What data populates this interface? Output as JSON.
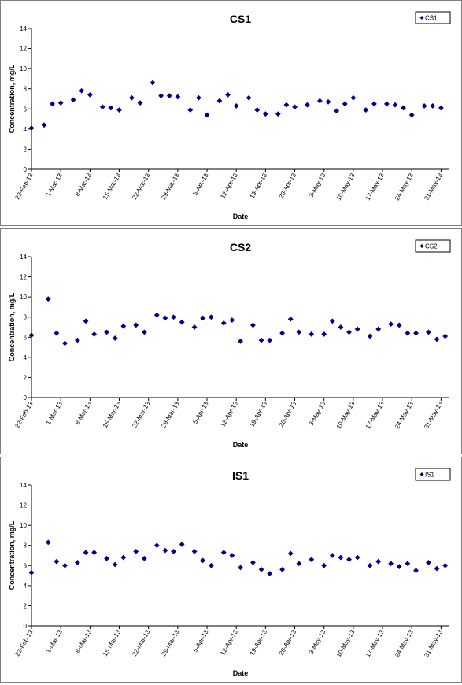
{
  "chart_data": [
    {
      "type": "scatter",
      "title": "CS1",
      "xlabel": "Date",
      "ylabel": "Concentration, mg/L",
      "ylim": [
        0,
        14
      ],
      "yticks": [
        "0",
        "2",
        "4",
        "6",
        "8",
        "10",
        "12",
        "14"
      ],
      "xlim": [
        "2013-02-22",
        "2013-06-02"
      ],
      "xtick_labels": [
        "22-Feb-13",
        "1-Mar-13",
        "8-Mar-13",
        "15-Mar-13",
        "22-Mar-13",
        "29-Mar-13",
        "5-Apr-13",
        "12-Apr-13",
        "19-Apr-13",
        "26-Apr-13",
        "3-May-13",
        "10-May-13",
        "17-May-13",
        "24-May-13",
        "31-May-13"
      ],
      "grid": false,
      "legend_position": "top-right",
      "marker_color": "#00008b",
      "series": [
        {
          "name": "CS1",
          "x": [
            "2013-02-22",
            "2013-02-25",
            "2013-02-27",
            "2013-03-01",
            "2013-03-04",
            "2013-03-06",
            "2013-03-08",
            "2013-03-11",
            "2013-03-13",
            "2013-03-15",
            "2013-03-18",
            "2013-03-20",
            "2013-03-23",
            "2013-03-25",
            "2013-03-27",
            "2013-03-29",
            "2013-04-01",
            "2013-04-03",
            "2013-04-05",
            "2013-04-08",
            "2013-04-10",
            "2013-04-12",
            "2013-04-15",
            "2013-04-17",
            "2013-04-19",
            "2013-04-22",
            "2013-04-24",
            "2013-04-26",
            "2013-04-29",
            "2013-05-02",
            "2013-05-04",
            "2013-05-06",
            "2013-05-08",
            "2013-05-10",
            "2013-05-13",
            "2013-05-15",
            "2013-05-18",
            "2013-05-20",
            "2013-05-22",
            "2013-05-24",
            "2013-05-27",
            "2013-05-29",
            "2013-05-31"
          ],
          "y": [
            4.1,
            4.4,
            6.5,
            6.6,
            6.9,
            7.8,
            7.4,
            6.2,
            6.1,
            5.9,
            7.1,
            6.6,
            8.6,
            7.3,
            7.3,
            7.2,
            5.9,
            7.1,
            5.4,
            6.8,
            7.4,
            6.3,
            7.1,
            5.9,
            5.5,
            5.5,
            6.4,
            6.2,
            6.4,
            6.8,
            6.7,
            5.8,
            6.5,
            7.1,
            5.9,
            6.5,
            6.5,
            6.4,
            6.1,
            5.4,
            6.3,
            6.3,
            6.1
          ]
        }
      ]
    },
    {
      "type": "scatter",
      "title": "CS2",
      "xlabel": "Date",
      "ylabel": "Concentration, mg/L",
      "ylim": [
        0,
        14
      ],
      "yticks": [
        "0",
        "2",
        "4",
        "6",
        "8",
        "10",
        "12",
        "14"
      ],
      "xlim": [
        "2013-02-22",
        "2013-06-02"
      ],
      "xtick_labels": [
        "22-Feb-13",
        "1-Mar-13",
        "8-Mar-13",
        "15-Mar-13",
        "22-Mar-13",
        "29-Mar-13",
        "5-Apr-13",
        "12-Apr-13",
        "19-Apr-13",
        "26-Apr-13",
        "3-May-13",
        "10-May-13",
        "17-May-13",
        "24-May-13",
        "31-May-13"
      ],
      "grid": false,
      "legend_position": "top-right",
      "marker_color": "#00008b",
      "series": [
        {
          "name": "CS2",
          "x": [
            "2013-02-22",
            "2013-02-26",
            "2013-02-28",
            "2013-03-02",
            "2013-03-05",
            "2013-03-07",
            "2013-03-09",
            "2013-03-12",
            "2013-03-14",
            "2013-03-16",
            "2013-03-19",
            "2013-03-21",
            "2013-03-24",
            "2013-03-26",
            "2013-03-28",
            "2013-03-30",
            "2013-04-02",
            "2013-04-04",
            "2013-04-06",
            "2013-04-09",
            "2013-04-11",
            "2013-04-13",
            "2013-04-16",
            "2013-04-18",
            "2013-04-20",
            "2013-04-23",
            "2013-04-25",
            "2013-04-27",
            "2013-04-30",
            "2013-05-03",
            "2013-05-05",
            "2013-05-07",
            "2013-05-09",
            "2013-05-11",
            "2013-05-14",
            "2013-05-16",
            "2013-05-19",
            "2013-05-21",
            "2013-05-23",
            "2013-05-25",
            "2013-05-28",
            "2013-05-30",
            "2013-06-01"
          ],
          "y": [
            6.2,
            9.8,
            6.4,
            5.4,
            5.7,
            7.6,
            6.3,
            6.5,
            5.9,
            7.1,
            7.2,
            6.5,
            8.2,
            7.9,
            8.0,
            7.5,
            7.0,
            7.9,
            8.0,
            7.4,
            7.7,
            5.6,
            7.2,
            5.7,
            5.7,
            6.4,
            7.8,
            6.5,
            6.3,
            6.3,
            7.6,
            7.0,
            6.5,
            6.8,
            6.1,
            6.8,
            7.3,
            7.2,
            6.4,
            6.4,
            6.5,
            5.8,
            6.1
          ]
        }
      ]
    },
    {
      "type": "scatter",
      "title": "IS1",
      "xlabel": "Date",
      "ylabel": "Concentration, mg/L",
      "ylim": [
        0,
        14
      ],
      "yticks": [
        "0",
        "2",
        "4",
        "6",
        "8",
        "10",
        "12",
        "14"
      ],
      "xlim": [
        "2013-02-22",
        "2013-06-02"
      ],
      "xtick_labels": [
        "22-Feb-13",
        "1-Mar-13",
        "8-Mar-13",
        "15-Mar-13",
        "22-Mar-13",
        "29-Mar-13",
        "5-Apr-13",
        "12-Apr-13",
        "19-Apr-13",
        "26-Apr-13",
        "3-May-13",
        "10-May-13",
        "17-May-13",
        "24-May-13",
        "31-May-13"
      ],
      "grid": false,
      "legend_position": "top-right",
      "marker_color": "#00008b",
      "series": [
        {
          "name": "IS1",
          "x": [
            "2013-02-22",
            "2013-02-26",
            "2013-02-28",
            "2013-03-02",
            "2013-03-05",
            "2013-03-07",
            "2013-03-09",
            "2013-03-12",
            "2013-03-14",
            "2013-03-16",
            "2013-03-19",
            "2013-03-21",
            "2013-03-24",
            "2013-03-26",
            "2013-03-28",
            "2013-03-30",
            "2013-04-02",
            "2013-04-04",
            "2013-04-06",
            "2013-04-09",
            "2013-04-11",
            "2013-04-13",
            "2013-04-16",
            "2013-04-18",
            "2013-04-20",
            "2013-04-23",
            "2013-04-25",
            "2013-04-27",
            "2013-04-30",
            "2013-05-03",
            "2013-05-05",
            "2013-05-07",
            "2013-05-09",
            "2013-05-11",
            "2013-05-14",
            "2013-05-16",
            "2013-05-19",
            "2013-05-21",
            "2013-05-23",
            "2013-05-25",
            "2013-05-28",
            "2013-05-30",
            "2013-06-01"
          ],
          "y": [
            5.3,
            8.3,
            6.4,
            6.0,
            6.3,
            7.3,
            7.3,
            6.7,
            6.1,
            6.8,
            7.4,
            6.7,
            8.0,
            7.5,
            7.4,
            8.1,
            7.4,
            6.5,
            6.0,
            7.3,
            7.0,
            5.8,
            6.3,
            5.6,
            5.2,
            5.6,
            7.2,
            6.2,
            6.6,
            6.0,
            7.0,
            6.8,
            6.6,
            6.8,
            6.0,
            6.4,
            6.2,
            5.9,
            6.2,
            5.5,
            6.3,
            5.7,
            6.0
          ]
        }
      ]
    }
  ]
}
